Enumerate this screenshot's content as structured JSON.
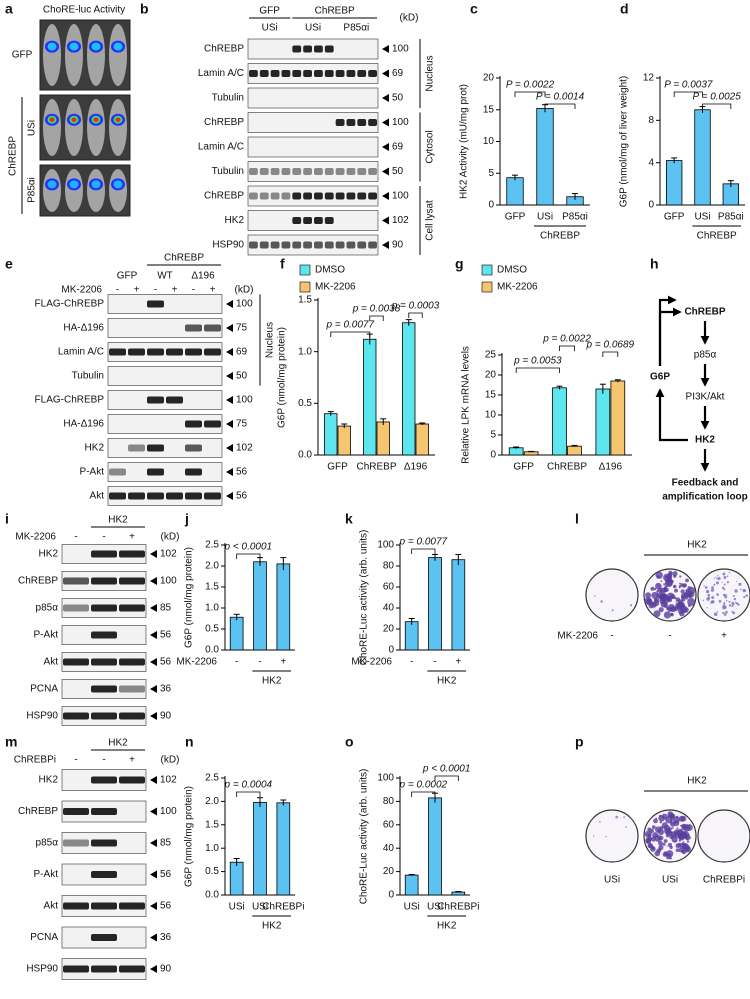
{
  "panels": {
    "a": {
      "label": "a",
      "title": "ChoRE-luc Activity",
      "rows": [
        "GFP",
        "USi",
        "P85αi"
      ],
      "group": "ChREBP"
    },
    "b": {
      "label": "b",
      "kd_unit": "(kD)",
      "groups": [
        "GFP",
        "ChREBP"
      ],
      "conditions": [
        "USi",
        "USi",
        "P85αi"
      ],
      "rows": [
        {
          "name": "ChREBP",
          "kd": 100
        },
        {
          "name": "Lamin A/C",
          "kd": 69
        },
        {
          "name": "Tubulin",
          "kd": 50
        },
        {
          "name": "ChREBP",
          "kd": 100
        },
        {
          "name": "Lamin A/C",
          "kd": 69
        },
        {
          "name": "Tubulin",
          "kd": 50
        },
        {
          "name": "ChREBP",
          "kd": 100
        },
        {
          "name": "HK2",
          "kd": 102
        },
        {
          "name": "HSP90",
          "kd": 90
        }
      ],
      "sections": [
        "Nucleus",
        "Cytosol",
        "Cell lysat"
      ]
    },
    "e": {
      "label": "e",
      "kd_unit": "(kD)",
      "groups": [
        "ChREBP"
      ],
      "conditions": [
        "GFP",
        "WT",
        "Δ196"
      ],
      "treatment": "MK-2206",
      "signs": [
        "-",
        "+",
        "-",
        "+",
        "-",
        "+"
      ],
      "rows": [
        {
          "name": "FLAG-ChREBP",
          "kd": 100
        },
        {
          "name": "HA-Δ196",
          "kd": 75
        },
        {
          "name": "Lamin A/C",
          "kd": 69
        },
        {
          "name": "Tubulin",
          "kd": 50
        },
        {
          "name": "FLAG-ChREBP",
          "kd": 100
        },
        {
          "name": "HA-Δ196",
          "kd": 75
        },
        {
          "name": "HK2",
          "kd": 102
        },
        {
          "name": "P-Akt",
          "kd": 56
        },
        {
          "name": "Akt",
          "kd": 56
        }
      ],
      "sections": [
        "Nucleus"
      ]
    },
    "h": {
      "label": "h",
      "nodes": [
        "ChREBP",
        "p85α",
        "PI3K/Akt",
        "HK2",
        "G6P"
      ],
      "caption": [
        "Feedback and",
        "amplification loop"
      ]
    },
    "i": {
      "label": "i",
      "kd_unit": "(kD)",
      "groups": [
        "HK2"
      ],
      "treatment": "MK-2206",
      "signs": [
        "-",
        "-",
        "+"
      ],
      "rows": [
        {
          "name": "HK2",
          "kd": 102
        },
        {
          "name": "ChREBP",
          "kd": 100
        },
        {
          "name": "p85α",
          "kd": 85
        },
        {
          "name": "P-Akt",
          "kd": 56
        },
        {
          "name": "Akt",
          "kd": 56
        },
        {
          "name": "PCNA",
          "kd": 36
        },
        {
          "name": "HSP90",
          "kd": 90
        }
      ]
    },
    "l": {
      "label": "l",
      "group": "HK2",
      "treatment": "MK-2206",
      "signs": [
        "-",
        "-",
        "+"
      ]
    },
    "m": {
      "label": "m",
      "kd_unit": "(kD)",
      "groups": [
        "HK2"
      ],
      "treatment": "ChREBPi",
      "signs": [
        "-",
        "-",
        "+"
      ],
      "rows": [
        {
          "name": "HK2",
          "kd": 102
        },
        {
          "name": "ChREBP",
          "kd": 100
        },
        {
          "name": "p85α",
          "kd": 85
        },
        {
          "name": "P-Akt",
          "kd": 56
        },
        {
          "name": "Akt",
          "kd": 56
        },
        {
          "name": "PCNA",
          "kd": 36
        },
        {
          "name": "HSP90",
          "kd": 90
        }
      ]
    },
    "p": {
      "label": "p",
      "group": "HK2",
      "conditions": [
        "USi",
        "USi",
        "ChREBPi"
      ]
    }
  },
  "chart_data": [
    {
      "type": "bar",
      "panel": "c",
      "ylabel": "HK2 Activity (mU/mg prot)",
      "categories": [
        "GFP",
        "USi",
        "P85αi"
      ],
      "group_label": "ChREBP",
      "values": [
        4.3,
        15.2,
        1.3
      ],
      "errors": [
        0.4,
        0.6,
        0.5
      ],
      "color": "#5bc2f2",
      "ylim": [
        0,
        20
      ],
      "yticks": [
        0,
        5,
        10,
        15,
        20
      ],
      "annotations": [
        "P = 0.0022",
        "P = 0.0014"
      ]
    },
    {
      "type": "bar",
      "panel": "d",
      "ylabel": "G6P (nmol/mg of liver weight)",
      "categories": [
        "GFP",
        "USi",
        "P85αi"
      ],
      "group_label": "ChREBP",
      "values": [
        4.2,
        9.0,
        2.0
      ],
      "errors": [
        0.25,
        0.3,
        0.3
      ],
      "color": "#5bc2f2",
      "ylim": [
        0,
        12
      ],
      "yticks": [
        0,
        4,
        8,
        12
      ],
      "annotations": [
        "P = 0.0037",
        "P = 0.0025"
      ]
    },
    {
      "type": "bar",
      "panel": "f",
      "ylabel": "G6P (nmol/mg protein)",
      "categories": [
        "GFP",
        "ChREBP",
        "Δ196"
      ],
      "series": [
        {
          "name": "DMSO",
          "color": "#5ee6ee",
          "values": [
            0.4,
            1.12,
            1.28
          ],
          "errors": [
            0.02,
            0.05,
            0.03
          ]
        },
        {
          "name": "MK-2206",
          "color": "#f6c56f",
          "values": [
            0.28,
            0.32,
            0.3
          ],
          "errors": [
            0.02,
            0.03,
            0.01
          ]
        }
      ],
      "ylim": [
        0,
        1.5
      ],
      "yticks": [
        {
          "value": 0,
          "label": "0.0"
        },
        0.5,
        {
          "value": 1,
          "label": "1.0"
        },
        1.5
      ],
      "annotations": [
        "p = 0.0077",
        "p = 0.0038",
        "p = 0.0003"
      ]
    },
    {
      "type": "bar",
      "panel": "g",
      "ylabel": "Relative LPK mRNA levels",
      "categories": [
        "GFP",
        "ChREBP",
        "Δ196"
      ],
      "series": [
        {
          "name": "DMSO",
          "color": "#5ee6ee",
          "values": [
            1.8,
            16.8,
            16.5
          ],
          "errors": [
            0.2,
            0.4,
            1.2
          ]
        },
        {
          "name": "MK-2206",
          "color": "#f6c56f",
          "values": [
            0.8,
            2.2,
            18.5
          ],
          "errors": [
            0.1,
            0.2,
            0.3
          ]
        }
      ],
      "ylim": [
        0,
        25
      ],
      "yticks": [
        0,
        5,
        10,
        15,
        20,
        25
      ],
      "annotations": [
        "p = 0.0053",
        "p = 0.0022",
        "p = 0.0689"
      ]
    },
    {
      "type": "bar",
      "panel": "j",
      "ylabel": "G6P (nmol/mg protein)",
      "xlabel": "MK-2206",
      "categories": [
        "-",
        "-",
        "+"
      ],
      "group_label": "HK2",
      "values": [
        0.78,
        2.1,
        2.05
      ],
      "errors": [
        0.07,
        0.1,
        0.15
      ],
      "color": "#5bc2f2",
      "ylim": [
        0,
        2.5
      ],
      "yticks": [
        {
          "value": 0,
          "label": "0.0"
        },
        0.5,
        {
          "value": 1,
          "label": "1.0"
        },
        1.5,
        {
          "value": 2,
          "label": "2.0"
        },
        2.5
      ],
      "annotations": [
        "p < 0.0001"
      ]
    },
    {
      "type": "bar",
      "panel": "k",
      "ylabel": "ChoRE-Luc activity (arb. units)",
      "xlabel": "MK-2206",
      "categories": [
        "-",
        "-",
        "+"
      ],
      "group_label": "HK2",
      "values": [
        27,
        88,
        86
      ],
      "errors": [
        3,
        3,
        5
      ],
      "color": "#5bc2f2",
      "ylim": [
        0,
        100
      ],
      "yticks": [
        0,
        20,
        40,
        60,
        80,
        100
      ],
      "annotations": [
        "p = 0.0077"
      ]
    },
    {
      "type": "bar",
      "panel": "n",
      "ylabel": "G6P (nmol/mg protein)",
      "categories": [
        "USi",
        "USi",
        "ChREBPi"
      ],
      "group_label": "HK2",
      "values": [
        0.7,
        1.98,
        1.97
      ],
      "errors": [
        0.08,
        0.1,
        0.06
      ],
      "color": "#5bc2f2",
      "ylim": [
        0,
        2.5
      ],
      "yticks": [
        {
          "value": 0,
          "label": "0.0"
        },
        0.5,
        {
          "value": 1,
          "label": "1.0"
        },
        1.5,
        {
          "value": 2,
          "label": "2.0"
        },
        2.5
      ],
      "annotations": [
        "p = 0.0004"
      ]
    },
    {
      "type": "bar",
      "panel": "o",
      "ylabel": "ChoRE-Luc activity (arb. units)",
      "categories": [
        "USi",
        "USi",
        "ChREBPi"
      ],
      "group_label": "HK2",
      "values": [
        17,
        83,
        2.5
      ],
      "errors": [
        0.5,
        4,
        0.5
      ],
      "color": "#5bc2f2",
      "ylim": [
        0,
        100
      ],
      "yticks": [
        0,
        20,
        40,
        60,
        80,
        100
      ],
      "annotations": [
        "p = 0.0002",
        "p < 0.0001"
      ]
    }
  ]
}
